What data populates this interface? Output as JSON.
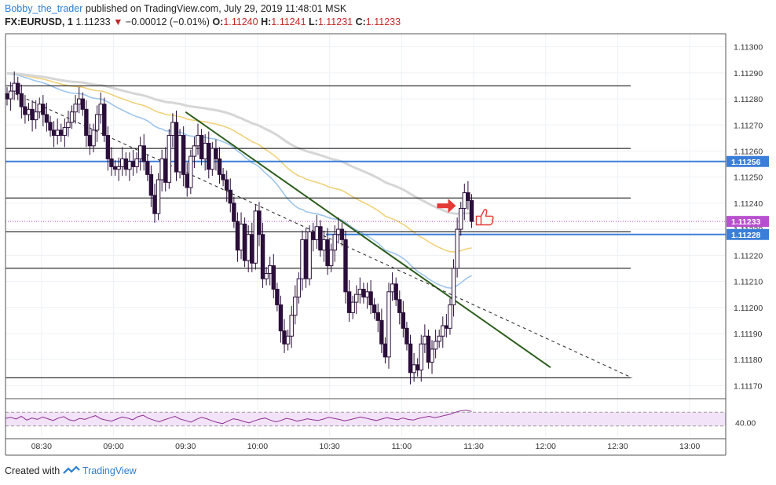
{
  "header": {
    "author": "Bobby_the_trader",
    "published": "published on TradingView.com, July 29, 2019 11:48:01 MSK"
  },
  "symbol": {
    "name": "FX:EURUSD, 1",
    "last": "1.11233",
    "change": "−0.00012 (−0.01%)",
    "o_label": "O:",
    "o_val": "1.11240",
    "h_label": "H:",
    "h_val": "1.11241",
    "l_label": "L:",
    "l_val": "1.11231",
    "c_label": "C:",
    "c_val": "1.11233"
  },
  "footer": {
    "created_with": "Created with",
    "brand": "TradingView"
  },
  "colors": {
    "candle_body": "#2b0f3a",
    "support_line": "#000000",
    "blue_level": "#3a7ed9",
    "trend_line": "#2e5e1e",
    "ema_blue": "#9ec5ec",
    "ema_yellow": "#f1d27a",
    "ema_grey": "#d6d6d6",
    "rsi_line": "#8c2d94",
    "rsi_fill": "#f3e3f8",
    "arrow": "#e53935"
  },
  "icons": [
    "red-arrow-icon",
    "thumbs-up-icon",
    "tradingview-logo-icon"
  ],
  "chart_data": {
    "type": "candlestick",
    "y_ticks": [
      "1.11300",
      "1.11290",
      "1.11280",
      "1.11270",
      "1.11260",
      "1.11250",
      "1.11240",
      "1.11230",
      "1.11220",
      "1.11210",
      "1.11200",
      "1.11190",
      "1.11180",
      "1.11170"
    ],
    "x_ticks": [
      "08:30",
      "09:00",
      "09:30",
      "10:00",
      "10:30",
      "11:00",
      "11:30",
      "12:00",
      "12:30",
      "13:00"
    ],
    "ylim": [
      1.11165,
      1.11305
    ],
    "xlim_minutes": [
      "08:15",
      "13:15"
    ],
    "price_tags": [
      {
        "label": "1.11256",
        "value": 1.11256,
        "color": "#3a7ed9"
      },
      {
        "label": "1.11233",
        "value": 1.11233,
        "color": "#b84fd0"
      },
      {
        "label": "1.11228",
        "value": 1.11228,
        "color": "#3a7ed9"
      }
    ],
    "horizontal_levels": [
      1.11285,
      1.11261,
      1.11242,
      1.11229,
      1.11215,
      1.11173
    ],
    "blue_levels": [
      1.11256,
      1.11228
    ],
    "trend_lines": [
      {
        "from": [
          "09:30",
          1.11275
        ],
        "to": [
          "12:02",
          1.11177
        ],
        "style": "solid"
      },
      {
        "from": [
          "08:19",
          1.11282
        ],
        "to": [
          "12:36",
          1.11173
        ],
        "style": "dashed"
      }
    ],
    "candles_close": [
      1.1128,
      1.11283,
      1.11286,
      1.11282,
      1.11277,
      1.11274,
      1.11276,
      1.11272,
      1.11275,
      1.11278,
      1.11274,
      1.11271,
      1.11268,
      1.11266,
      1.11268,
      1.11266,
      1.11269,
      1.11271,
      1.11275,
      1.11278,
      1.1128,
      1.11276,
      1.11266,
      1.11262,
      1.11268,
      1.11274,
      1.11278,
      1.11266,
      1.11257,
      1.11254,
      1.11253,
      1.11254,
      1.11257,
      1.11253,
      1.11256,
      1.11254,
      1.11257,
      1.11262,
      1.11256,
      1.11251,
      1.11243,
      1.11236,
      1.11249,
      1.11257,
      1.11248,
      1.11266,
      1.11271,
      1.11252,
      1.11266,
      1.11251,
      1.11246,
      1.11258,
      1.11262,
      1.11266,
      1.11257,
      1.11263,
      1.11253,
      1.11261,
      1.11257,
      1.11251,
      1.11249,
      1.11245,
      1.1124,
      1.11233,
      1.11222,
      1.11232,
      1.11218,
      1.11228,
      1.11217,
      1.11237,
      1.11228,
      1.11211,
      1.11213,
      1.11216,
      1.11207,
      1.11201,
      1.11191,
      1.11186,
      1.11189,
      1.11197,
      1.11204,
      1.11211,
      1.11226,
      1.11211,
      1.11229,
      1.11226,
      1.11231,
      1.11222,
      1.11226,
      1.11216,
      1.11222,
      1.11228,
      1.1123,
      1.11226,
      1.11206,
      1.11198,
      1.11202,
      1.11205,
      1.11207,
      1.11204,
      1.11206,
      1.11201,
      1.11198,
      1.11195,
      1.11186,
      1.11181,
      1.11206,
      1.11209,
      1.11203,
      1.11198,
      1.11192,
      1.11186,
      1.11175,
      1.11178,
      1.11176,
      1.11186,
      1.11189,
      1.11179,
      1.11184,
      1.11187,
      1.11189,
      1.11193,
      1.11192,
      1.11201,
      1.11215,
      1.1123,
      1.11238,
      1.11244,
      1.11241,
      1.11233
    ],
    "rsi": {
      "label": "40.00",
      "upper_band": 70,
      "lower_band": 30,
      "values": [
        52,
        55,
        50,
        58,
        47,
        53,
        49,
        56,
        51,
        46,
        53,
        57,
        48,
        45,
        52,
        49,
        55,
        60,
        51,
        47,
        44,
        50,
        56,
        53,
        48,
        57,
        61,
        52,
        47,
        42,
        48,
        53,
        58,
        50,
        46,
        41,
        49,
        55,
        51,
        45,
        40,
        37,
        44,
        51,
        48,
        43,
        39,
        45,
        50,
        53,
        47,
        42,
        46,
        52,
        49,
        44,
        47,
        51,
        48,
        46,
        50,
        55,
        52,
        49,
        45,
        48,
        52,
        56,
        53,
        49,
        46,
        50,
        54,
        51,
        48,
        53,
        49,
        47,
        52,
        55,
        58,
        54,
        57,
        61,
        64,
        70,
        74,
        76,
        72
      ]
    }
  }
}
